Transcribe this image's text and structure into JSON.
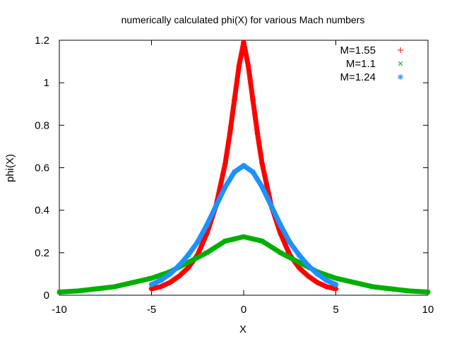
{
  "chart_data": {
    "type": "scatter",
    "title": "numerically calculated phi(X) for various Mach numbers",
    "xlabel": "X",
    "ylabel": "phi(X)",
    "xlim": [
      -10,
      10
    ],
    "ylim": [
      0,
      1.2
    ],
    "x_ticks": [
      -10,
      -5,
      0,
      5,
      10
    ],
    "x_tick_labels": [
      "-10",
      "-5",
      "0",
      "5",
      "10"
    ],
    "y_ticks": [
      0,
      0.2,
      0.4,
      0.6,
      0.8,
      1.0,
      1.2
    ],
    "y_tick_labels": [
      "0",
      "0.2",
      "0.4",
      "0.6",
      "0.8",
      "1",
      "1.2"
    ],
    "grid": false,
    "legend_position": "top-right",
    "series": [
      {
        "name": "M=1.55",
        "marker": "plus",
        "color": "#ff0000",
        "x": [
          -5,
          -4.5,
          -4,
          -3.5,
          -3,
          -2.5,
          -2,
          -1.5,
          -1,
          -0.75,
          -0.5,
          -0.25,
          0,
          0.25,
          0.5,
          0.75,
          1,
          1.5,
          2,
          2.5,
          3,
          3.5,
          4,
          4.5,
          5
        ],
        "y": [
          0.03,
          0.04,
          0.06,
          0.09,
          0.13,
          0.19,
          0.29,
          0.42,
          0.62,
          0.76,
          0.92,
          1.08,
          1.19,
          1.08,
          0.92,
          0.76,
          0.62,
          0.42,
          0.29,
          0.19,
          0.13,
          0.09,
          0.06,
          0.04,
          0.03
        ]
      },
      {
        "name": "M=1.1",
        "marker": "cross",
        "color": "#00b000",
        "x": [
          -10,
          -9,
          -8,
          -7,
          -6,
          -5,
          -4,
          -3,
          -2,
          -1,
          0,
          1,
          2,
          3,
          4,
          5,
          6,
          7,
          8,
          9,
          10
        ],
        "y": [
          0.015,
          0.02,
          0.03,
          0.04,
          0.06,
          0.08,
          0.11,
          0.155,
          0.2,
          0.255,
          0.275,
          0.255,
          0.2,
          0.155,
          0.11,
          0.08,
          0.06,
          0.04,
          0.03,
          0.02,
          0.015
        ]
      },
      {
        "name": "M=1.24",
        "marker": "star",
        "color": "#1e90ff",
        "x": [
          -5,
          -4.5,
          -4,
          -3.5,
          -3,
          -2.5,
          -2,
          -1.5,
          -1,
          -0.5,
          0,
          0.5,
          1,
          1.5,
          2,
          2.5,
          3,
          3.5,
          4,
          4.5,
          5
        ],
        "y": [
          0.05,
          0.07,
          0.1,
          0.14,
          0.19,
          0.25,
          0.33,
          0.42,
          0.51,
          0.58,
          0.61,
          0.58,
          0.51,
          0.42,
          0.33,
          0.25,
          0.19,
          0.14,
          0.1,
          0.07,
          0.05
        ]
      }
    ]
  }
}
